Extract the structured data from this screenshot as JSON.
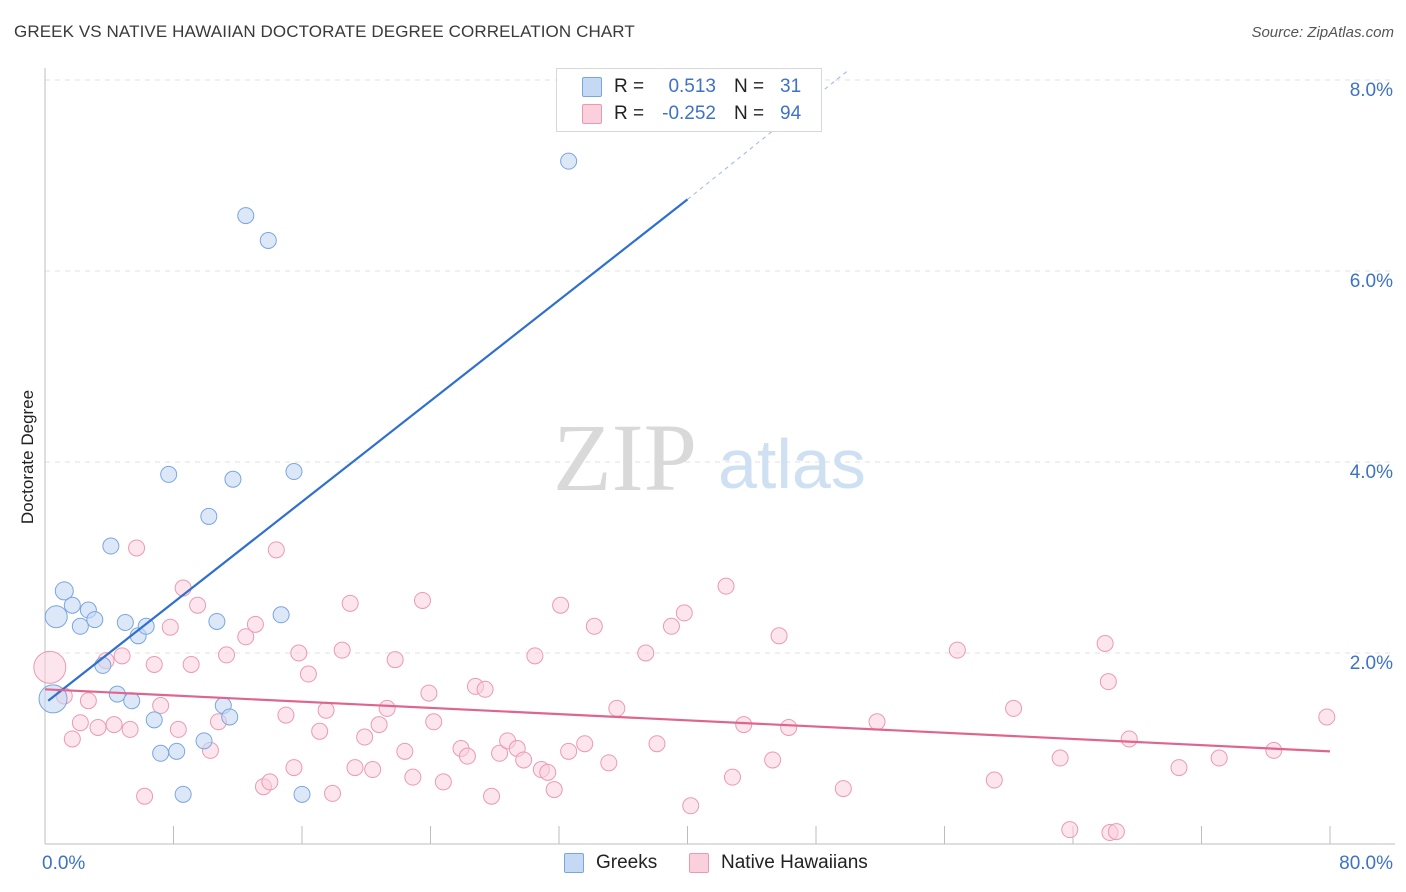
{
  "title": "GREEK VS NATIVE HAWAIIAN DOCTORATE DEGREE CORRELATION CHART",
  "source": "Source: ZipAtlas.com",
  "watermark": {
    "zip": "ZIP",
    "atlas": "atlas"
  },
  "legend": {
    "rows": [
      {
        "r_label": "R =",
        "r_value": "0.513",
        "n_label": "N =",
        "n_value": "31"
      },
      {
        "r_label": "R =",
        "r_value": "-0.252",
        "n_label": "N =",
        "n_value": "94"
      }
    ]
  },
  "bottom_legend": [
    "Greeks",
    "Native Hawaiians"
  ],
  "colors": {
    "greeks_fill": "#c5d9f4",
    "greeks_stroke": "#7aa6e0",
    "greeks_line": "#2f6fcf",
    "hawaiian_fill": "#f9d0dc",
    "hawaiian_stroke": "#ec9ab3",
    "hawaiian_line": "#e0658d",
    "tick_label": "#3d72c8",
    "grid": "#e2e2e2"
  },
  "chart_data": {
    "type": "scatter",
    "title": "GREEK VS NATIVE HAWAIIAN DOCTORATE DEGREE CORRELATION CHART",
    "xlabel": "",
    "ylabel": "Doctorate Degree",
    "xlim": [
      0,
      80
    ],
    "ylim": [
      0,
      8
    ],
    "x_tick_labels": [
      "0.0%",
      "80.0%"
    ],
    "y_ticks": [
      2,
      4,
      6,
      8
    ],
    "y_tick_labels": [
      "2.0%",
      "4.0%",
      "6.0%",
      "8.0%"
    ],
    "grid": true,
    "legend_position": "top-center",
    "series": [
      {
        "name": "Greeks",
        "r": 0.513,
        "n": 31,
        "trend": {
          "x": [
            0.2,
            40.0
          ],
          "y": [
            1.5,
            6.75
          ],
          "extended_to": [
            50.0,
            8.1
          ]
        },
        "points": [
          [
            0.5,
            1.52,
            14
          ],
          [
            0.7,
            2.38,
            11
          ],
          [
            1.2,
            2.65,
            9
          ],
          [
            1.7,
            2.5,
            8
          ],
          [
            2.2,
            2.28,
            8
          ],
          [
            2.7,
            2.45,
            8
          ],
          [
            3.1,
            2.35,
            8
          ],
          [
            3.6,
            1.87,
            8
          ],
          [
            4.1,
            3.12,
            8
          ],
          [
            4.5,
            1.57,
            8
          ],
          [
            5.0,
            2.32,
            8
          ],
          [
            5.4,
            1.5,
            8
          ],
          [
            5.8,
            2.18,
            8
          ],
          [
            6.3,
            2.28,
            8
          ],
          [
            6.8,
            1.3,
            8
          ],
          [
            7.2,
            0.95,
            8
          ],
          [
            7.7,
            3.87,
            8
          ],
          [
            8.2,
            0.97,
            8
          ],
          [
            8.6,
            0.52,
            8
          ],
          [
            9.9,
            1.08,
            8
          ],
          [
            10.2,
            3.43,
            8
          ],
          [
            10.7,
            2.33,
            8
          ],
          [
            11.1,
            1.45,
            8
          ],
          [
            11.5,
            1.33,
            8
          ],
          [
            11.7,
            3.82,
            8
          ],
          [
            12.5,
            6.58,
            8
          ],
          [
            13.9,
            6.32,
            8
          ],
          [
            14.7,
            2.4,
            8
          ],
          [
            15.5,
            3.9,
            8
          ],
          [
            16.0,
            0.52,
            8
          ],
          [
            32.6,
            7.15,
            8
          ]
        ]
      },
      {
        "name": "Native Hawaiians",
        "r": -0.252,
        "n": 94,
        "trend": {
          "x": [
            0.0,
            80.0
          ],
          "y": [
            1.62,
            0.97
          ]
        },
        "points": [
          [
            0.3,
            1.85,
            16
          ],
          [
            1.2,
            1.55,
            8
          ],
          [
            1.7,
            1.1,
            8
          ],
          [
            2.2,
            1.27,
            8
          ],
          [
            2.7,
            1.5,
            8
          ],
          [
            3.3,
            1.22,
            8
          ],
          [
            3.8,
            1.92,
            8
          ],
          [
            4.3,
            1.25,
            8
          ],
          [
            4.8,
            1.97,
            8
          ],
          [
            5.3,
            1.2,
            8
          ],
          [
            5.7,
            3.1,
            8
          ],
          [
            6.2,
            0.5,
            8
          ],
          [
            6.8,
            1.88,
            8
          ],
          [
            7.2,
            1.45,
            8
          ],
          [
            7.8,
            2.27,
            8
          ],
          [
            8.3,
            1.2,
            8
          ],
          [
            8.6,
            2.68,
            8
          ],
          [
            9.1,
            1.88,
            8
          ],
          [
            9.5,
            2.5,
            8
          ],
          [
            10.3,
            0.98,
            8
          ],
          [
            10.8,
            1.28,
            8
          ],
          [
            11.3,
            1.98,
            8
          ],
          [
            12.5,
            2.17,
            8
          ],
          [
            13.1,
            2.3,
            8
          ],
          [
            13.6,
            0.6,
            8
          ],
          [
            14.0,
            0.65,
            8
          ],
          [
            14.4,
            3.08,
            8
          ],
          [
            15.0,
            1.35,
            8
          ],
          [
            15.5,
            0.8,
            8
          ],
          [
            15.8,
            2.0,
            8
          ],
          [
            16.4,
            1.78,
            8
          ],
          [
            17.1,
            1.18,
            8
          ],
          [
            17.5,
            1.4,
            8
          ],
          [
            17.9,
            0.53,
            8
          ],
          [
            18.5,
            2.03,
            8
          ],
          [
            19.0,
            2.52,
            8
          ],
          [
            19.3,
            0.8,
            8
          ],
          [
            19.9,
            1.12,
            8
          ],
          [
            20.4,
            0.78,
            8
          ],
          [
            20.8,
            1.25,
            8
          ],
          [
            21.3,
            1.42,
            8
          ],
          [
            21.8,
            1.93,
            8
          ],
          [
            22.4,
            0.97,
            8
          ],
          [
            22.9,
            0.7,
            8
          ],
          [
            23.5,
            2.55,
            8
          ],
          [
            23.9,
            1.58,
            8
          ],
          [
            24.2,
            1.28,
            8
          ],
          [
            24.8,
            0.65,
            8
          ],
          [
            25.9,
            1.0,
            8
          ],
          [
            26.3,
            0.92,
            8
          ],
          [
            26.8,
            1.65,
            8
          ],
          [
            27.4,
            1.62,
            8
          ],
          [
            27.8,
            0.5,
            8
          ],
          [
            28.3,
            0.95,
            8
          ],
          [
            28.8,
            1.08,
            8
          ],
          [
            29.4,
            1.0,
            8
          ],
          [
            29.8,
            0.88,
            8
          ],
          [
            30.5,
            1.97,
            8
          ],
          [
            30.9,
            0.78,
            8
          ],
          [
            31.3,
            0.75,
            8
          ],
          [
            31.7,
            0.57,
            8
          ],
          [
            32.1,
            2.5,
            8
          ],
          [
            32.6,
            0.97,
            8
          ],
          [
            33.6,
            1.05,
            8
          ],
          [
            34.2,
            2.28,
            8
          ],
          [
            35.1,
            0.85,
            8
          ],
          [
            35.6,
            1.42,
            8
          ],
          [
            37.4,
            2.0,
            8
          ],
          [
            38.1,
            1.05,
            8
          ],
          [
            39.0,
            2.28,
            8
          ],
          [
            39.8,
            2.42,
            8
          ],
          [
            40.2,
            0.4,
            8
          ],
          [
            42.4,
            2.7,
            8
          ],
          [
            42.8,
            0.7,
            8
          ],
          [
            43.5,
            1.25,
            8
          ],
          [
            45.3,
            0.88,
            8
          ],
          [
            45.7,
            2.18,
            8
          ],
          [
            46.3,
            1.22,
            8
          ],
          [
            49.7,
            0.58,
            8
          ],
          [
            51.8,
            1.28,
            8
          ],
          [
            56.8,
            2.03,
            8
          ],
          [
            59.1,
            0.67,
            8
          ],
          [
            60.3,
            1.42,
            8
          ],
          [
            63.2,
            0.9,
            8
          ],
          [
            63.8,
            0.15,
            8
          ],
          [
            66.0,
            2.1,
            8
          ],
          [
            66.2,
            1.7,
            8
          ],
          [
            66.3,
            0.12,
            8
          ],
          [
            66.7,
            0.13,
            8
          ],
          [
            67.5,
            1.1,
            8
          ],
          [
            70.6,
            0.8,
            8
          ],
          [
            73.1,
            0.9,
            8
          ],
          [
            76.5,
            0.98,
            8
          ],
          [
            79.8,
            1.33,
            8
          ]
        ]
      }
    ]
  }
}
